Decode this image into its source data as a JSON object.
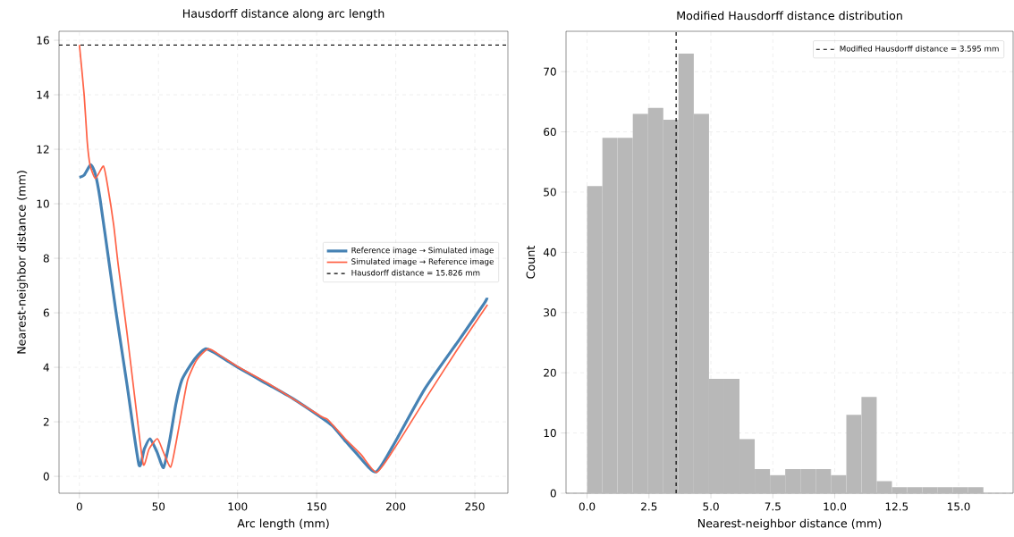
{
  "chart_data": [
    {
      "type": "line",
      "title": "Hausdorff distance along arc length",
      "xlabel": "Arc length (mm)",
      "ylabel": "Nearest-neighbor distance (mm)",
      "series": [
        {
          "name": "Reference image → Simulated image",
          "color": "#4682b4",
          "x": [
            0,
            3,
            7.1,
            10,
            13,
            18.9,
            23.2,
            30,
            37.6,
            41,
            44.6,
            49,
            53.2,
            57,
            61,
            64.8,
            70.4,
            75,
            79.8,
            85,
            100.4,
            119,
            135,
            152.8,
            160,
            167.8,
            175,
            187.4,
            200,
            218.4,
            240,
            256,
            257.7
          ],
          "values": [
            10.97,
            11.05,
            11.43,
            11.1,
            10.2,
            7.77,
            6.0,
            3.4,
            0.43,
            1.0,
            1.38,
            0.9,
            0.32,
            1.3,
            2.66,
            3.54,
            4.1,
            4.45,
            4.68,
            4.55,
            3.99,
            3.38,
            2.85,
            2.16,
            1.85,
            1.32,
            0.85,
            0.16,
            1.3,
            3.21,
            5.0,
            6.35,
            6.55
          ]
        },
        {
          "name": "Simulated image → Reference image",
          "color": "#ff6347",
          "x": [
            0,
            3,
            4.9,
            6.7,
            10.1,
            15.2,
            18,
            21.7,
            24.5,
            30,
            36,
            40.4,
            44,
            49.3,
            53,
            57.7,
            61,
            64.8,
            68.5,
            74.2,
            81.6,
            90,
            100,
            119,
            152.8,
            157,
            168,
            178,
            188,
            200,
            220,
            240,
            258
          ],
          "values": [
            15.83,
            13.99,
            12.3,
            11.43,
            10.93,
            11.38,
            10.6,
            9.2,
            7.77,
            5.3,
            2.4,
            0.43,
            1.0,
            1.38,
            0.9,
            0.34,
            1.2,
            2.43,
            3.54,
            4.27,
            4.68,
            4.4,
            4.03,
            3.42,
            2.2,
            2.08,
            1.38,
            0.8,
            0.15,
            1.1,
            2.95,
            4.75,
            6.3
          ]
        }
      ],
      "ref_lines": [
        {
          "axis": "y",
          "value": 15.826,
          "label": "Hausdorff distance = 15.826 mm",
          "color": "#000000",
          "line_style": "dashed"
        }
      ],
      "xlim": [
        -12.9,
        270.9
      ],
      "ylim": [
        -0.62,
        16.33
      ],
      "xticks": [
        0,
        50,
        100,
        150,
        200,
        250
      ],
      "yticks": [
        0,
        2,
        4,
        6,
        8,
        10,
        12,
        14,
        16
      ],
      "grid": true,
      "legend": "right",
      "line_style": "solid",
      "marker": "none"
    },
    {
      "type": "histogram",
      "title": "Modified Hausdorff distance distribution",
      "xlabel": "Nearest-neighbor distance (mm)",
      "ylabel": "Count",
      "bins": [
        0,
        0.615,
        1.231,
        1.846,
        2.462,
        3.077,
        3.692,
        4.308,
        4.923,
        5.538,
        6.154,
        6.769,
        7.385,
        8.0,
        8.615,
        9.231,
        9.846,
        10.462,
        11.077,
        11.692,
        12.308,
        12.923,
        13.538,
        14.154,
        14.769,
        15.385,
        16.0
      ],
      "values": [
        51,
        59,
        59,
        63,
        64,
        62,
        73,
        63,
        19,
        19,
        9,
        4,
        3,
        4,
        4,
        4,
        3,
        13,
        16,
        2,
        1,
        1,
        1,
        1,
        1,
        1
      ],
      "color": "#b8b8b8",
      "ref_lines": [
        {
          "axis": "x",
          "value": 3.595,
          "label": "Modified Hausdorff distance = 3.595 mm",
          "color": "#000000",
          "line_style": "dashed"
        }
      ],
      "xlim": [
        -0.85,
        17.2
      ],
      "ylim": [
        0,
        76.7
      ],
      "xticks": [
        {
          "value": 0,
          "label": "0.0"
        },
        {
          "value": 2.5,
          "label": "2.5"
        },
        {
          "value": 5,
          "label": "5.0"
        },
        {
          "value": 7.5,
          "label": "7.5"
        },
        {
          "value": 10,
          "label": "10.0"
        },
        {
          "value": 12.5,
          "label": "12.5"
        },
        {
          "value": 15,
          "label": "15.0"
        }
      ],
      "yticks": [
        0,
        10,
        20,
        30,
        40,
        50,
        60,
        70
      ],
      "grid": true,
      "legend": "top right"
    }
  ]
}
